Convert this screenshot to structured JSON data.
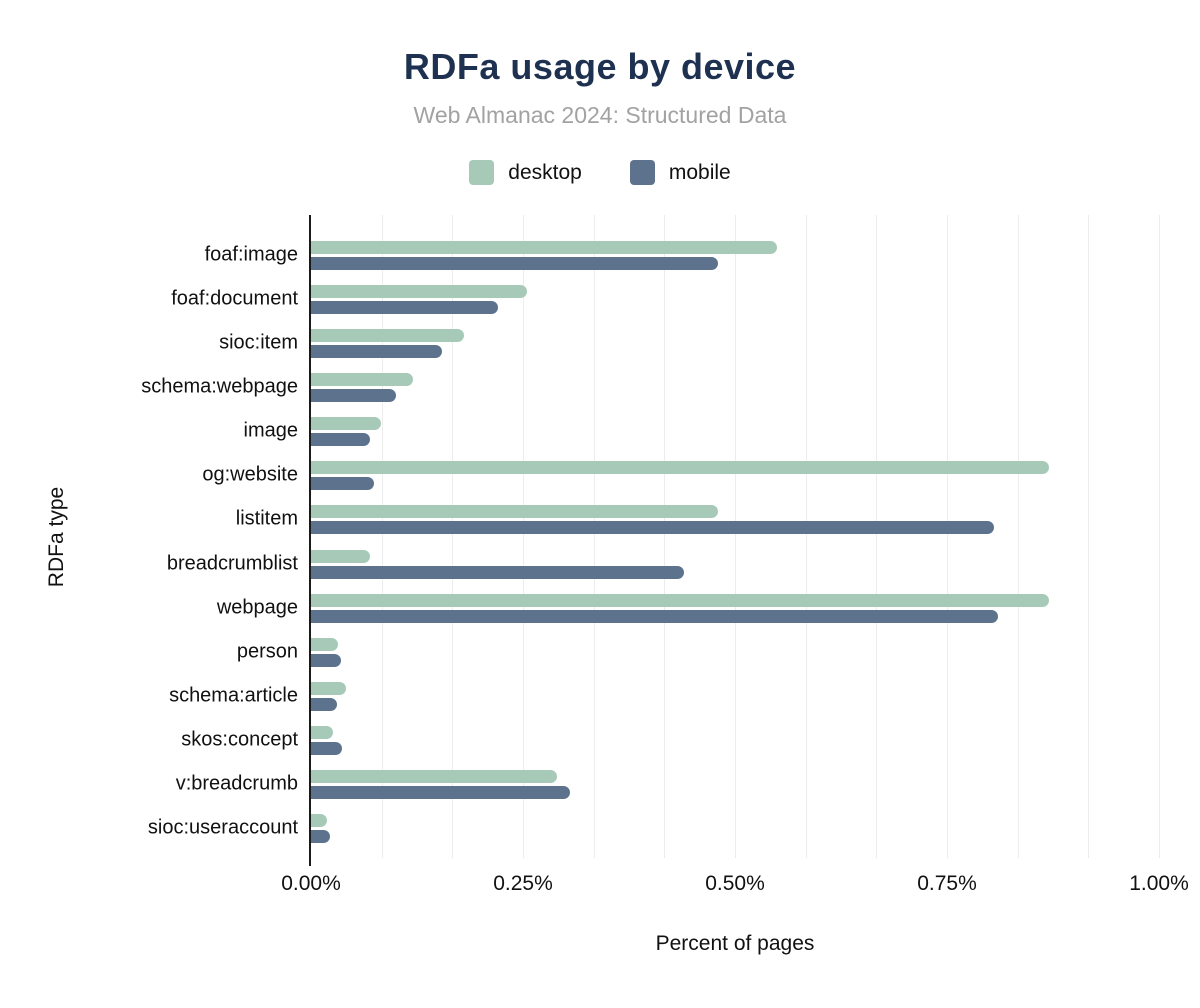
{
  "header": {
    "title": "RDFa usage by device",
    "subtitle": "Web Almanac 2024: Structured Data"
  },
  "axes": {
    "xlabel": "Percent of pages",
    "ylabel": "RDFa type"
  },
  "colors": {
    "title": "#1e3150",
    "subtitle": "#a2a2a2",
    "desktop": "#a7cab8",
    "mobile": "#5d728c",
    "axis": "#1a1a1a",
    "gridline": "#ececec",
    "text": "#111111",
    "background": "#ffffff"
  },
  "chart_data": {
    "type": "bar",
    "orientation": "horizontal",
    "title": "RDFa usage by device",
    "subtitle": "Web Almanac 2024: Structured Data",
    "xlabel": "Percent of pages",
    "ylabel": "RDFa type",
    "xlim": [
      0,
      1
    ],
    "x_ticks": [
      {
        "label": "0.00%",
        "value": 0
      },
      {
        "label": "0.25%",
        "value": 0.25
      },
      {
        "label": "0.50%",
        "value": 0.5
      },
      {
        "label": "0.75%",
        "value": 0.75
      },
      {
        "label": "1.00%",
        "value": 1
      }
    ],
    "grid": "minor vertical gridlines every 1/12 of range (0.0833%)",
    "minor_grid_divisions": 12,
    "legend_position": "top",
    "categories": [
      "foaf:image",
      "foaf:document",
      "sioc:item",
      "schema:webpage",
      "image",
      "og:website",
      "listitem",
      "breadcrumblist",
      "webpage",
      "person",
      "schema:article",
      "skos:concept",
      "v:breadcrumb",
      "sioc:useraccount"
    ],
    "series": [
      {
        "name": "desktop",
        "color": "#a7cab8",
        "values": [
          0.55,
          0.255,
          0.18,
          0.12,
          0.082,
          0.87,
          0.48,
          0.07,
          0.87,
          0.032,
          0.041,
          0.026,
          0.29,
          0.019
        ]
      },
      {
        "name": "mobile",
        "color": "#5d728c",
        "values": [
          0.48,
          0.22,
          0.155,
          0.1,
          0.07,
          0.074,
          0.805,
          0.44,
          0.81,
          0.035,
          0.031,
          0.036,
          0.305,
          0.022
        ]
      }
    ]
  }
}
